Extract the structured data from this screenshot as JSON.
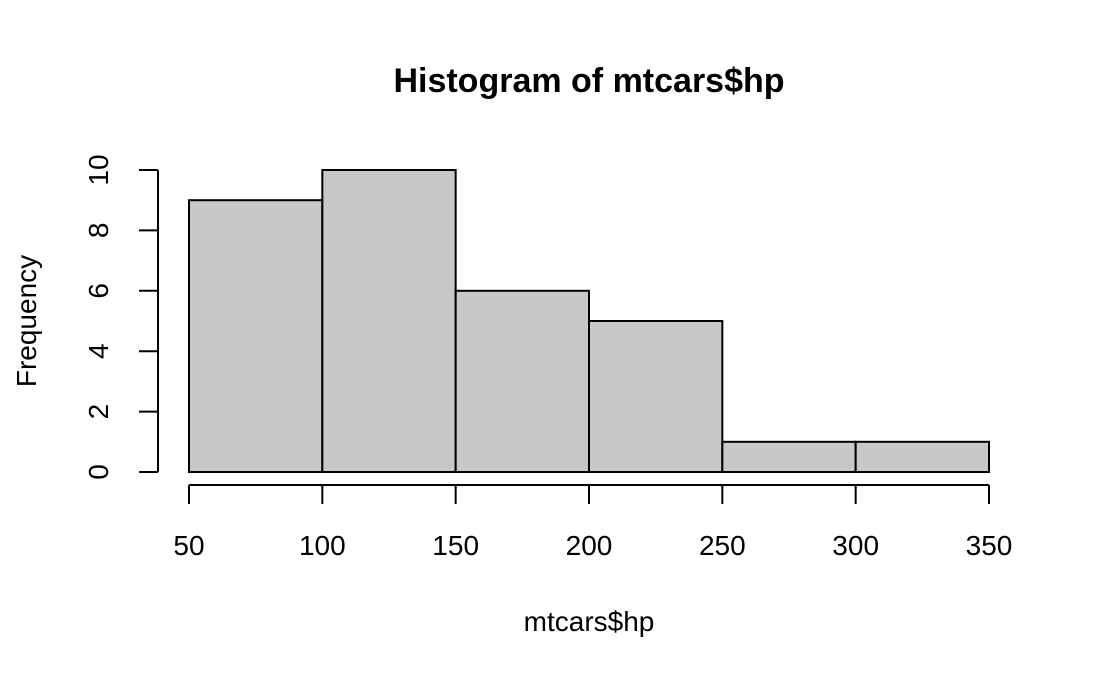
{
  "chart_data": {
    "type": "bar",
    "title": "Histogram of mtcars$hp",
    "xlabel": "mtcars$hp",
    "ylabel": "Frequency",
    "bins": [
      {
        "start": 50,
        "end": 100,
        "count": 9
      },
      {
        "start": 100,
        "end": 150,
        "count": 10
      },
      {
        "start": 150,
        "end": 200,
        "count": 6
      },
      {
        "start": 200,
        "end": 250,
        "count": 5
      },
      {
        "start": 250,
        "end": 300,
        "count": 1
      },
      {
        "start": 300,
        "end": 350,
        "count": 1
      }
    ],
    "x_ticks": [
      50,
      100,
      150,
      200,
      250,
      300,
      350
    ],
    "y_ticks": [
      0,
      2,
      4,
      6,
      8,
      10
    ],
    "xlim": [
      50,
      350
    ],
    "ylim": [
      0,
      10
    ],
    "grid": false,
    "colors": {
      "bar_fill": "#c8c8c8",
      "bar_stroke": "#000000"
    }
  }
}
